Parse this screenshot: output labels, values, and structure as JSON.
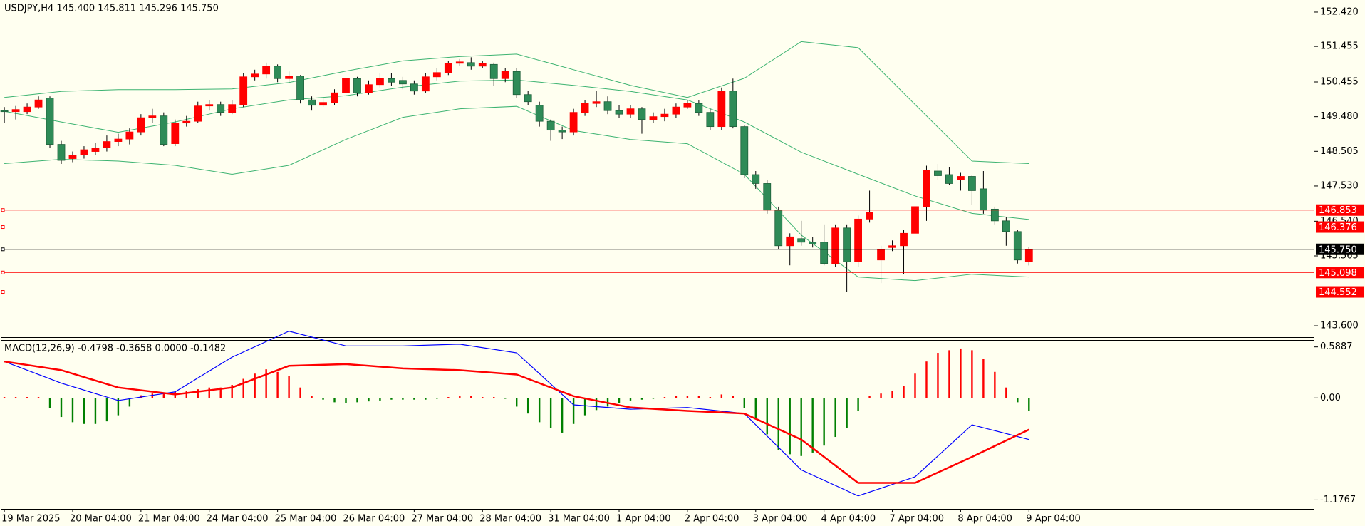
{
  "chart_data": [
    {
      "type": "candlestick",
      "title": "USDJPY,H4  145.400 145.811 145.296 145.750",
      "categories": [
        "19 Mar 2025",
        null,
        null,
        null,
        null,
        null,
        "20 Mar 04:00",
        null,
        null,
        null,
        null,
        null,
        "21 Mar 04:00",
        null,
        null,
        null,
        null,
        null,
        "24 Mar 04:00",
        null,
        null,
        null,
        null,
        null,
        "25 Mar 04:00",
        null,
        null,
        null,
        null,
        null,
        "26 Mar 04:00",
        null,
        null,
        null,
        null,
        null,
        "27 Mar 04:00",
        null,
        null,
        null,
        null,
        null,
        "28 Mar 04:00",
        null,
        null,
        null,
        null,
        null,
        "31 Mar 04:00",
        null,
        null,
        null,
        null,
        null,
        "1 Apr 04:00",
        null,
        null,
        null,
        null,
        null,
        "2 Apr 04:00",
        null,
        null,
        null,
        null,
        null,
        "3 Apr 04:00",
        null,
        null,
        null,
        null,
        null,
        "4 Apr 04:00",
        null,
        null,
        null,
        null,
        null,
        "7 Apr 04:00",
        null,
        null,
        null,
        null,
        null,
        "8 Apr 04:00",
        null,
        null,
        null,
        null,
        null,
        "9 Apr 04:00"
      ],
      "open": [
        149.65,
        149.62,
        149.62,
        149.75,
        150.0,
        148.7,
        148.3,
        148.4,
        148.5,
        148.6,
        148.78,
        148.85,
        149.05,
        149.45,
        149.5,
        148.72,
        149.3,
        149.35,
        149.78,
        149.82,
        149.6,
        149.82,
        150.6,
        150.68,
        150.9,
        150.55,
        150.62,
        149.95,
        149.8,
        149.88,
        150.15,
        150.55,
        150.15,
        150.38,
        150.55,
        150.5,
        150.4,
        150.2,
        150.6,
        150.72,
        150.98,
        151.0,
        150.9,
        150.95,
        150.55,
        150.75,
        150.1,
        149.8,
        149.35,
        149.1,
        149.05,
        149.6,
        149.85,
        149.9,
        149.65,
        149.55,
        149.7,
        149.4,
        149.48,
        149.55,
        149.75,
        149.85,
        149.6,
        149.2,
        150.2,
        149.2,
        147.85,
        147.6,
        146.85,
        145.85,
        146.05,
        145.95,
        145.95,
        145.35,
        146.35,
        145.4,
        146.6,
        145.45,
        145.8,
        145.85,
        146.2,
        146.95,
        147.95,
        147.85,
        147.7,
        147.8,
        147.45,
        146.88,
        146.55,
        146.25,
        145.4
      ],
      "high": [
        149.75,
        149.78,
        149.85,
        150.05,
        150.05,
        148.8,
        148.5,
        148.65,
        148.75,
        148.95,
        149.0,
        149.15,
        149.55,
        149.7,
        149.6,
        149.4,
        149.5,
        149.9,
        149.95,
        149.9,
        149.95,
        150.7,
        150.8,
        151.0,
        150.95,
        150.75,
        150.65,
        150.05,
        150.0,
        150.25,
        150.65,
        150.6,
        150.5,
        150.7,
        150.7,
        150.6,
        150.5,
        150.7,
        150.85,
        151.05,
        151.1,
        151.15,
        151.05,
        151.0,
        150.85,
        150.85,
        150.2,
        149.9,
        149.4,
        149.2,
        149.7,
        149.95,
        150.2,
        150.05,
        149.8,
        149.8,
        149.75,
        149.6,
        149.7,
        149.85,
        149.95,
        149.95,
        149.7,
        150.3,
        150.55,
        149.25,
        147.95,
        147.7,
        146.95,
        146.2,
        146.55,
        146.1,
        146.45,
        146.45,
        146.45,
        146.7,
        147.4,
        145.85,
        146.0,
        146.3,
        147.05,
        148.1,
        148.15,
        148.05,
        147.9,
        147.85,
        147.95,
        146.95,
        146.65,
        146.3,
        145.811
      ],
      "low": [
        149.3,
        149.4,
        149.55,
        149.7,
        148.6,
        148.15,
        148.2,
        148.3,
        148.4,
        148.5,
        148.65,
        148.7,
        148.95,
        149.3,
        148.65,
        148.65,
        149.2,
        149.3,
        149.65,
        149.5,
        149.55,
        149.75,
        150.5,
        150.55,
        150.45,
        150.45,
        149.85,
        149.65,
        149.75,
        149.8,
        150.05,
        150.05,
        150.1,
        150.3,
        150.35,
        150.25,
        150.1,
        150.15,
        150.5,
        150.65,
        150.9,
        150.8,
        150.85,
        150.35,
        150.45,
        150.0,
        149.8,
        149.2,
        148.8,
        148.85,
        148.95,
        149.5,
        149.75,
        149.55,
        149.45,
        149.45,
        149.0,
        149.3,
        149.35,
        149.45,
        149.7,
        149.5,
        149.1,
        149.1,
        149.15,
        147.75,
        147.45,
        146.75,
        145.75,
        145.3,
        145.85,
        145.8,
        145.3,
        145.25,
        144.55,
        145.25,
        146.5,
        144.8,
        145.7,
        145.05,
        146.1,
        146.55,
        147.7,
        147.55,
        147.4,
        147.0,
        146.75,
        146.45,
        145.85,
        145.35,
        145.296
      ],
      "close": [
        149.62,
        149.68,
        149.75,
        149.95,
        148.7,
        148.25,
        148.4,
        148.55,
        148.6,
        148.78,
        148.85,
        149.05,
        149.45,
        149.5,
        148.7,
        149.3,
        149.35,
        149.78,
        149.82,
        149.6,
        149.82,
        150.6,
        150.68,
        150.9,
        150.55,
        150.62,
        149.95,
        149.8,
        149.88,
        150.15,
        150.55,
        150.15,
        150.38,
        150.55,
        150.45,
        150.4,
        150.2,
        150.6,
        150.72,
        150.98,
        151.02,
        150.9,
        150.97,
        150.55,
        150.75,
        150.1,
        149.9,
        149.35,
        149.1,
        149.05,
        149.6,
        149.85,
        149.9,
        149.65,
        149.55,
        149.7,
        149.4,
        149.48,
        149.55,
        149.75,
        149.85,
        149.6,
        149.2,
        150.2,
        149.2,
        147.85,
        147.6,
        146.85,
        145.85,
        146.1,
        145.95,
        145.9,
        145.35,
        146.35,
        145.4,
        146.6,
        146.78,
        145.75,
        145.85,
        146.2,
        146.95,
        147.98,
        147.82,
        147.6,
        147.8,
        147.4,
        146.85,
        146.55,
        146.25,
        145.45,
        145.75
      ],
      "up_color": "#ff0000",
      "down_color": "#2e8b57",
      "wick_color": "#000000",
      "overlays": [
        {
          "x": [
            0,
            5,
            10,
            15,
            20,
            25,
            30,
            35,
            40,
            45,
            50,
            55,
            60,
            65,
            70,
            75,
            80,
            85,
            90
          ],
          "values": [
            150.02,
            150.19,
            150.24,
            150.24,
            150.26,
            150.44,
            150.76,
            151.05,
            151.17,
            151.24,
            150.8,
            150.36,
            150.02,
            150.56,
            151.59,
            151.42,
            149.82,
            148.23,
            148.16
          ],
          "color": "#3cb371"
        },
        {
          "x": [
            0,
            5,
            10,
            15,
            20,
            25,
            30,
            35,
            40,
            45,
            50,
            55,
            60,
            65,
            70,
            75,
            80,
            85,
            90
          ],
          "values": [
            149.63,
            149.33,
            149.04,
            149.33,
            149.7,
            149.95,
            150.07,
            150.31,
            150.48,
            150.51,
            150.36,
            150.19,
            149.95,
            149.33,
            148.48,
            147.86,
            147.25,
            146.76,
            146.59
          ],
          "color": "#3cb371"
        },
        {
          "x": [
            0,
            5,
            10,
            15,
            20,
            25,
            30,
            35,
            40,
            45,
            50,
            55,
            60,
            65,
            70,
            75,
            80,
            85,
            90
          ],
          "values": [
            148.16,
            148.28,
            148.23,
            148.11,
            147.86,
            148.11,
            148.84,
            149.46,
            149.7,
            149.77,
            149.09,
            148.84,
            148.72,
            147.86,
            146.15,
            144.97,
            144.87,
            145.05,
            144.97
          ],
          "color": "#3cb371"
        }
      ],
      "levels": [
        {
          "value": 146.853,
          "color": "#ff0000"
        },
        {
          "value": 146.376,
          "color": "#ff0000"
        },
        {
          "value": 145.75,
          "label": "145.750",
          "color": "#000000"
        },
        {
          "value": 145.098,
          "color": "#ff0000"
        },
        {
          "value": 144.552,
          "color": "#ff0000"
        }
      ],
      "ylim": [
        143.26,
        152.72
      ],
      "yticks": [
        {
          "value": 152.42,
          "label": "152.420"
        },
        151.455,
        150.455,
        {
          "value": 149.48,
          "label": "149.480"
        },
        148.505,
        {
          "value": 147.53,
          "label": "147.530"
        },
        {
          "value": 146.54,
          "label": "146.540"
        },
        145.565,
        {
          "value": 143.6,
          "label": "143.600"
        }
      ]
    },
    {
      "type": "macd",
      "title": "MACD(12,26,9) -0.4798 -0.3658 0.0000 -0.1482",
      "values": [
        0.01,
        0.01,
        0.01,
        0.01,
        -0.12,
        -0.22,
        -0.28,
        -0.3,
        -0.3,
        -0.27,
        -0.2,
        -0.1,
        0.03,
        0.05,
        0.06,
        0.07,
        0.08,
        0.1,
        0.12,
        0.12,
        0.15,
        0.22,
        0.28,
        0.33,
        0.3,
        0.25,
        0.12,
        0.02,
        -0.02,
        -0.05,
        -0.06,
        -0.05,
        -0.04,
        -0.03,
        -0.02,
        -0.02,
        -0.02,
        -0.02,
        -0.01,
        0.01,
        0.02,
        0.02,
        0.01,
        0.01,
        -0.01,
        -0.1,
        -0.18,
        -0.28,
        -0.35,
        -0.4,
        -0.3,
        -0.2,
        -0.14,
        -0.1,
        -0.06,
        -0.03,
        -0.02,
        -0.01,
        0.01,
        0.02,
        0.02,
        0.02,
        0.01,
        0.04,
        0.02,
        -0.12,
        -0.25,
        -0.42,
        -0.6,
        -0.65,
        -0.67,
        -0.63,
        -0.55,
        -0.45,
        -0.35,
        -0.15,
        0.02,
        0.05,
        0.08,
        0.14,
        0.28,
        0.42,
        0.52,
        0.55,
        0.57,
        0.55,
        0.45,
        0.3,
        0.12,
        -0.05,
        -0.1482
      ],
      "up_color": "#ff0000",
      "down_color": "#008000",
      "series": [
        {
          "x": [
            0,
            5,
            10,
            15,
            20,
            25,
            30,
            35,
            40,
            45,
            50,
            55,
            60,
            65,
            70,
            75,
            80,
            85,
            90
          ],
          "values": [
            0.42,
            0.17,
            -0.03,
            0.07,
            0.47,
            0.77,
            0.6,
            0.6,
            0.62,
            0.52,
            -0.08,
            -0.13,
            -0.11,
            -0.18,
            -0.83,
            -1.13,
            -0.91,
            -0.31,
            -0.4798
          ],
          "color": "#0000ff"
        },
        {
          "x": [
            0,
            5,
            10,
            15,
            20,
            25,
            30,
            35,
            40,
            45,
            50,
            55,
            60,
            65,
            70,
            75,
            80,
            85,
            90
          ],
          "values": [
            0.42,
            0.32,
            0.12,
            0.04,
            0.12,
            0.37,
            0.39,
            0.34,
            0.32,
            0.27,
            0.02,
            -0.11,
            -0.15,
            -0.18,
            -0.48,
            -0.98,
            -0.98,
            -0.68,
            -0.3658
          ],
          "color": "#ff0000"
        }
      ],
      "ylim": [
        -1.28,
        0.66
      ],
      "yticks": [
        0.5887,
        {
          "value": 0,
          "label": "0.00"
        },
        -1.1767
      ]
    }
  ]
}
